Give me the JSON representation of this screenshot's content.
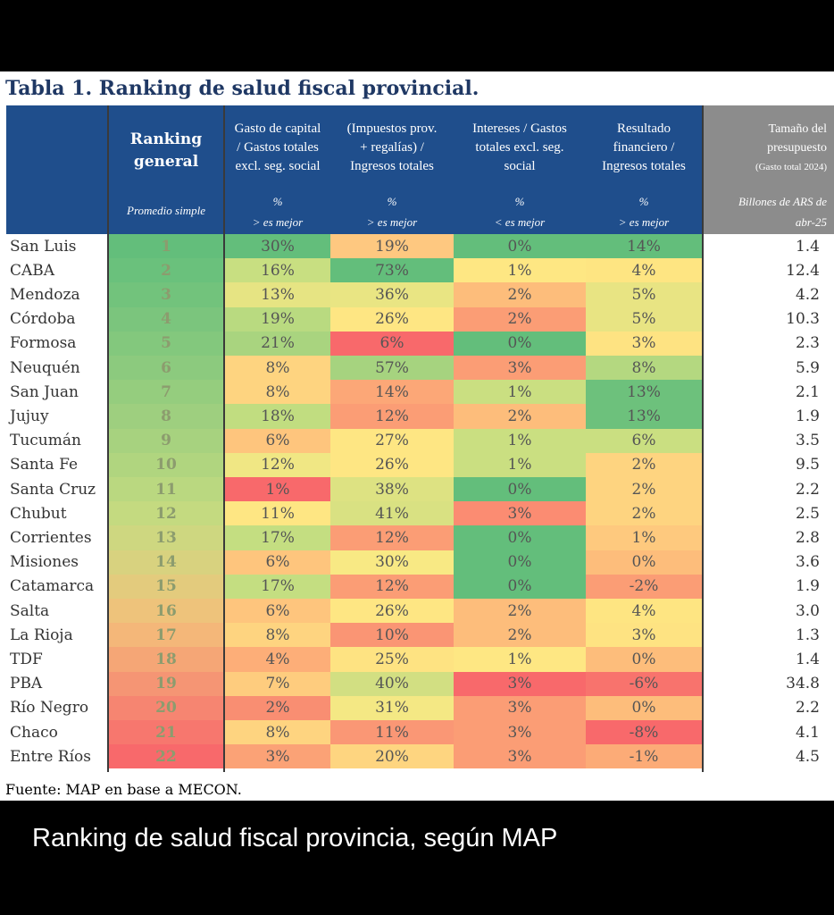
{
  "title": "Tabla 1. Ranking de salud fiscal provincial.",
  "headers": {
    "ranking": {
      "label_line1": "Ranking",
      "label_line2": "general",
      "sub": "Promedio simple"
    },
    "gasto_capital": {
      "line1": "Gasto de capital",
      "line2": "/ Gastos totales",
      "line3": "excl. seg. social",
      "unit": "%",
      "rule": "> es mejor"
    },
    "impuestos": {
      "line1": "(Impuestos prov.",
      "line2": "+ regalías) /",
      "line3": "Ingresos totales",
      "unit": "%",
      "rule": "> es mejor"
    },
    "intereses": {
      "line1": "Intereses / Gastos",
      "line2": "totales excl. seg.",
      "line3": "social",
      "unit": "%",
      "rule": "< es mejor"
    },
    "resultado": {
      "line1": "Resultado",
      "line2": "financiero /",
      "line3": "Ingresos totales",
      "unit": "%",
      "rule": "> es mejor"
    },
    "tamano": {
      "line1": "Tamaño del",
      "line2": "presupuesto",
      "line3": "(Gasto total 2024)",
      "unit": "Billones de ARS de",
      "rule": "abr-25"
    }
  },
  "rows": [
    {
      "province": "San Luis",
      "rank": "1",
      "gasto": "30%",
      "impuestos": "19%",
      "intereses": "0%",
      "resultado": "14%",
      "tamano": "1.4"
    },
    {
      "province": "CABA",
      "rank": "2",
      "gasto": "16%",
      "impuestos": "73%",
      "intereses": "1%",
      "resultado": "4%",
      "tamano": "12.4"
    },
    {
      "province": "Mendoza",
      "rank": "3",
      "gasto": "13%",
      "impuestos": "36%",
      "intereses": "2%",
      "resultado": "5%",
      "tamano": "4.2"
    },
    {
      "province": "Córdoba",
      "rank": "4",
      "gasto": "19%",
      "impuestos": "26%",
      "intereses": "2%",
      "resultado": "5%",
      "tamano": "10.3"
    },
    {
      "province": "Formosa",
      "rank": "5",
      "gasto": "21%",
      "impuestos": "6%",
      "intereses": "0%",
      "resultado": "3%",
      "tamano": "2.3"
    },
    {
      "province": "Neuquén",
      "rank": "6",
      "gasto": "8%",
      "impuestos": "57%",
      "intereses": "3%",
      "resultado": "8%",
      "tamano": "5.9"
    },
    {
      "province": "San Juan",
      "rank": "7",
      "gasto": "8%",
      "impuestos": "14%",
      "intereses": "1%",
      "resultado": "13%",
      "tamano": "2.1"
    },
    {
      "province": "Jujuy",
      "rank": "8",
      "gasto": "18%",
      "impuestos": "12%",
      "intereses": "2%",
      "resultado": "13%",
      "tamano": "1.9"
    },
    {
      "province": "Tucumán",
      "rank": "9",
      "gasto": "6%",
      "impuestos": "27%",
      "intereses": "1%",
      "resultado": "6%",
      "tamano": "3.5"
    },
    {
      "province": "Santa Fe",
      "rank": "10",
      "gasto": "12%",
      "impuestos": "26%",
      "intereses": "1%",
      "resultado": "2%",
      "tamano": "9.5"
    },
    {
      "province": "Santa Cruz",
      "rank": "11",
      "gasto": "1%",
      "impuestos": "38%",
      "intereses": "0%",
      "resultado": "2%",
      "tamano": "2.2"
    },
    {
      "province": "Chubut",
      "rank": "12",
      "gasto": "11%",
      "impuestos": "41%",
      "intereses": "3%",
      "resultado": "2%",
      "tamano": "2.5"
    },
    {
      "province": "Corrientes",
      "rank": "13",
      "gasto": "17%",
      "impuestos": "12%",
      "intereses": "0%",
      "resultado": "1%",
      "tamano": "2.8"
    },
    {
      "province": "Misiones",
      "rank": "14",
      "gasto": "6%",
      "impuestos": "30%",
      "intereses": "0%",
      "resultado": "0%",
      "tamano": "3.6"
    },
    {
      "province": "Catamarca",
      "rank": "15",
      "gasto": "17%",
      "impuestos": "12%",
      "intereses": "0%",
      "resultado": "-2%",
      "tamano": "1.9"
    },
    {
      "province": "Salta",
      "rank": "16",
      "gasto": "6%",
      "impuestos": "26%",
      "intereses": "2%",
      "resultado": "4%",
      "tamano": "3.0"
    },
    {
      "province": "La Rioja",
      "rank": "17",
      "gasto": "8%",
      "impuestos": "10%",
      "intereses": "2%",
      "resultado": "3%",
      "tamano": "1.3"
    },
    {
      "province": "TDF",
      "rank": "18",
      "gasto": "4%",
      "impuestos": "25%",
      "intereses": "1%",
      "resultado": "0%",
      "tamano": "1.4"
    },
    {
      "province": "PBA",
      "rank": "19",
      "gasto": "7%",
      "impuestos": "40%",
      "intereses": "3%",
      "resultado": "-6%",
      "tamano": "34.8"
    },
    {
      "province": "Río Negro",
      "rank": "20",
      "gasto": "2%",
      "impuestos": "31%",
      "intereses": "3%",
      "resultado": "0%",
      "tamano": "2.2"
    },
    {
      "province": "Chaco",
      "rank": "21",
      "gasto": "8%",
      "impuestos": "11%",
      "intereses": "3%",
      "resultado": "-8%",
      "tamano": "4.1"
    },
    {
      "province": "Entre Ríos",
      "rank": "22",
      "gasto": "3%",
      "impuestos": "20%",
      "intereses": "3%",
      "resultado": "-1%",
      "tamano": "4.5"
    }
  ],
  "cell_colors": {
    "rank": [
      "#63be7b",
      "#6ac17c",
      "#72c37c",
      "#7bc57d",
      "#83c87d",
      "#8cca7e",
      "#95cd7e",
      "#9ecf7f",
      "#a7d27f",
      "#b0d57f",
      "#bad880",
      "#c4da80",
      "#ced780",
      "#d8d27f",
      "#e3cb7d",
      "#eec37b",
      "#f4b779",
      "#f5a676",
      "#f59574",
      "#f68571",
      "#f7776e",
      "#f8696b"
    ],
    "gasto": [
      "#63be7b",
      "#c8df81",
      "#e6e483",
      "#b9da80",
      "#a9d47f",
      "#fed480",
      "#fed480",
      "#c1dd80",
      "#fec57d",
      "#f0e784",
      "#f8696b",
      "#fee683",
      "#c4de81",
      "#fec57d",
      "#c4de81",
      "#fec57d",
      "#fed480",
      "#fdae78",
      "#fecc7e",
      "#f98e72",
      "#fed480",
      "#fba276"
    ],
    "impuestos": [
      "#fec880",
      "#63be7b",
      "#e9e583",
      "#fee683",
      "#f8696b",
      "#a6d37f",
      "#fca777",
      "#fb9d75",
      "#fee683",
      "#fee683",
      "#ddE282",
      "#d9e182",
      "#fb9d75",
      "#f8e984",
      "#fb9d75",
      "#fee683",
      "#fa9574",
      "#fee382",
      "#d2df82",
      "#f4e884",
      "#fa9775",
      "#fed580"
    ],
    "intereses": [
      "#63be7b",
      "#fee783",
      "#fdbd7b",
      "#fb9d75",
      "#63be7b",
      "#fb9d75",
      "#cadf81",
      "#fdbd7b",
      "#cadf81",
      "#cadf81",
      "#63be7b",
      "#fb8c72",
      "#63be7b",
      "#63be7b",
      "#63be7b",
      "#fdbd7b",
      "#fdbd7b",
      "#fee783",
      "#f8696b",
      "#fb9d75",
      "#fb9d75",
      "#fb9d75"
    ],
    "resultado": [
      "#63be7b",
      "#fee582",
      "#e8e483",
      "#e8e483",
      "#fee382",
      "#b4d880",
      "#6dc17c",
      "#6dc17c",
      "#cadf81",
      "#fed480",
      "#fed480",
      "#fed480",
      "#fec97e",
      "#fdbd7b",
      "#fb9d75",
      "#fee582",
      "#fee382",
      "#fdbd7b",
      "#f8736d",
      "#fdbd7b",
      "#f8696b",
      "#fcab77"
    ]
  },
  "footer": "Fuente: MAP en base a MECON.",
  "caption": "Ranking de salud fiscal provincia, según MAP"
}
